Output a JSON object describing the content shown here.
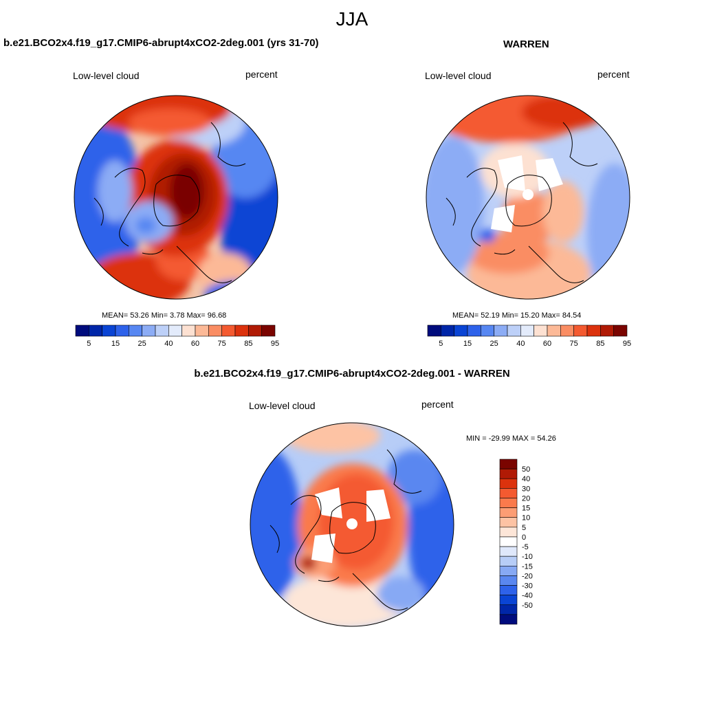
{
  "figure": {
    "main_title": "JJA",
    "panels": [
      {
        "id": "model",
        "title": "b.e21.BCO2x4.f19_g17.CMIP6-abrupt4xCO2-2deg.001 (yrs 31-70)",
        "left_label": "Low-level cloud",
        "right_label": "percent",
        "stats": "MEAN=  53.26  Min=   3.78  Max=  96.68"
      },
      {
        "id": "obs",
        "title": "WARREN",
        "left_label": "Low-level cloud",
        "right_label": "percent",
        "stats": "MEAN=  52.19  Min=  15.20  Max=  84.54"
      },
      {
        "id": "diff",
        "title": "b.e21.BCO2x4.f19_g17.CMIP6-abrupt4xCO2-2deg.001 - WARREN",
        "left_label": "Low-level cloud",
        "right_label": "percent",
        "stats": "MIN = -29.99 MAX =  54.26"
      }
    ],
    "abs_colorbar": {
      "colors": [
        "#000c7d",
        "#0026a8",
        "#0a44d4",
        "#2e62ea",
        "#5787f2",
        "#8cacf5",
        "#bdd0f8",
        "#e3ebfb",
        "#fde1d2",
        "#fcb997",
        "#fa8d63",
        "#f45a30",
        "#dc320d",
        "#b01a05",
        "#7a0400"
      ],
      "tick_labels": [
        "5",
        "15",
        "25",
        "40",
        "60",
        "75",
        "85",
        "95"
      ]
    },
    "diff_colorbar": {
      "colors": [
        "#7a0400",
        "#b01a05",
        "#dc320d",
        "#f45a30",
        "#fa7a4c",
        "#fc9d74",
        "#fdc3a4",
        "#fde6d8",
        "#ffffff",
        "#dfe8fb",
        "#b7cdf7",
        "#87a9f4",
        "#5a87f0",
        "#2e62ea",
        "#0a44d4",
        "#0026a8",
        "#000c7d"
      ],
      "tick_labels": [
        "50",
        "40",
        "30",
        "20",
        "15",
        "10",
        "5",
        "0",
        "-5",
        "-10",
        "-15",
        "-20",
        "-30",
        "-40",
        "-50"
      ]
    }
  }
}
